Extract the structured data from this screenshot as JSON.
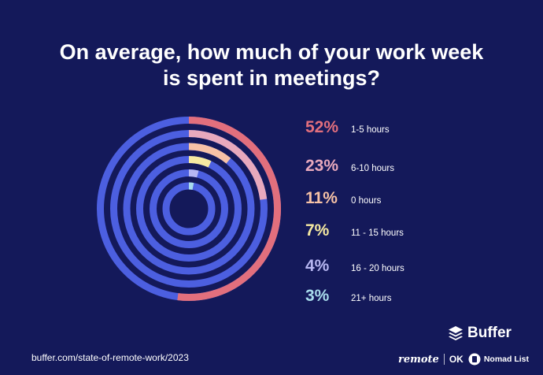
{
  "title_lines": [
    "On average, how much of your work week",
    "is spent in meetings?"
  ],
  "chart_data": {
    "type": "radial-bar",
    "title": "On average, how much of your work week is spent in meetings?",
    "max": 100,
    "track_color": "#4c5fe0",
    "series": [
      {
        "pct_label": "52%",
        "value": 52,
        "name": "1-5 hours",
        "color": "#e26f7d"
      },
      {
        "pct_label": "23%",
        "value": 23,
        "name": "6-10 hours",
        "color": "#e8a9bd"
      },
      {
        "pct_label": "11%",
        "value": 11,
        "name": "0 hours",
        "color": "#f7c2a6"
      },
      {
        "pct_label": "7%",
        "value": 7,
        "name": "11 - 15 hours",
        "color": "#f5e9a1"
      },
      {
        "pct_label": "4%",
        "value": 4,
        "name": "16 - 20 hours",
        "color": "#b7b7f2"
      },
      {
        "pct_label": "3%",
        "value": 3,
        "name": "21+ hours",
        "color": "#a8dcec"
      }
    ]
  },
  "footer": {
    "url": "buffer.com/state-of-remote-work/2023",
    "brand": "Buffer",
    "partner1": "remote",
    "partner2": "OK",
    "partner3": "Nomad List"
  }
}
